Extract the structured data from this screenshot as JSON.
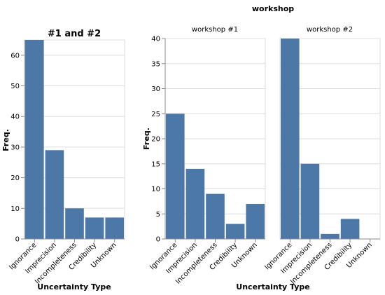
{
  "chart_data": [
    {
      "type": "bar",
      "title": "#1 and #2",
      "xlabel": "Uncertainty Type",
      "ylabel": "Freq.",
      "categories": [
        "Ignorance",
        "Imprecision",
        "Incompleteness",
        "Credibility",
        "Unknown"
      ],
      "values": [
        65,
        29,
        10,
        7,
        7
      ],
      "ylim": [
        0,
        65
      ],
      "yticks": [
        0,
        10,
        20,
        30,
        40,
        50,
        60
      ],
      "grid": true,
      "color": "#4c78a8"
    },
    {
      "type": "bar",
      "header": "workshop",
      "facet_label": "workshop #1",
      "xlabel": "Uncertainty Type",
      "ylabel": "Freq.",
      "categories": [
        "Ignorance",
        "Imprecision",
        "Incompleteness",
        "Credibility",
        "Unknown"
      ],
      "values": [
        25,
        14,
        9,
        3,
        7
      ],
      "ylim": [
        0,
        40
      ],
      "yticks": [
        0,
        5,
        10,
        15,
        20,
        25,
        30,
        35,
        40
      ],
      "grid": true,
      "color": "#4c78a8"
    },
    {
      "type": "bar",
      "header": "workshop",
      "facet_label": "workshop #2",
      "xlabel": "Uncertainty Type",
      "ylabel": "Freq.",
      "categories": [
        "Ignorance",
        "Imprecision",
        "Incompleteness",
        "Credibility",
        "Unknown"
      ],
      "values": [
        40,
        15,
        1,
        4,
        0
      ],
      "ylim": [
        0,
        40
      ],
      "yticks": [
        0,
        5,
        10,
        15,
        20,
        25,
        30,
        35,
        40
      ],
      "grid": true,
      "color": "#4c78a8"
    }
  ],
  "facet": {
    "header": "workshop",
    "labels": [
      "workshop #1",
      "workshop #2"
    ],
    "xlabel": "Uncertainty Type"
  }
}
